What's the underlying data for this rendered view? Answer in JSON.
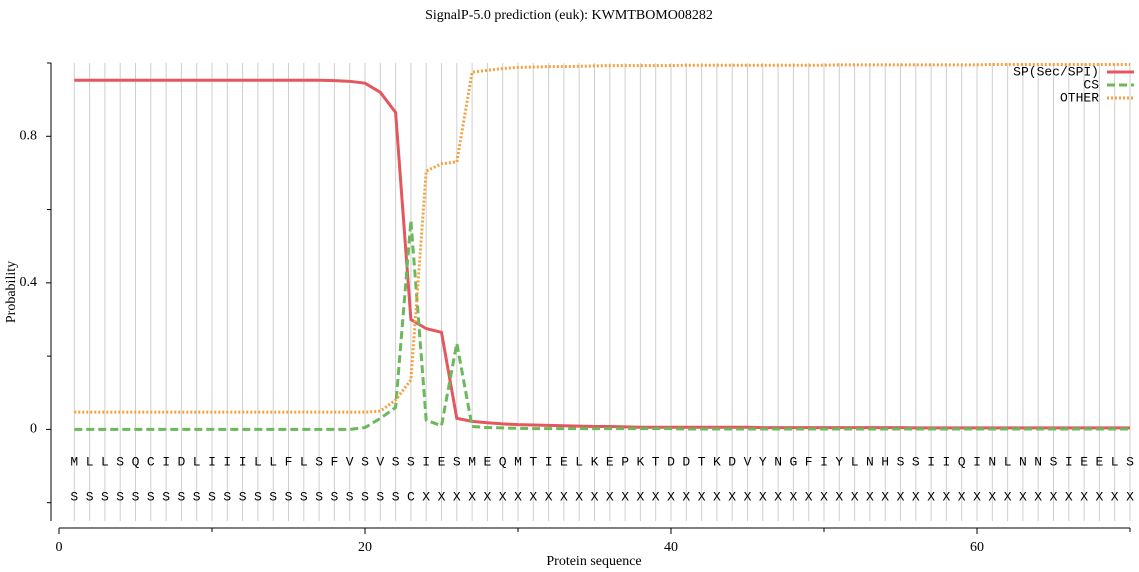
{
  "chart_data": {
    "type": "line",
    "title": "SignalP-5.0 prediction (euk):  KWMTBOMO08282",
    "xlabel": "Protein sequence",
    "ylabel": "Probability",
    "x": [
      1,
      2,
      3,
      4,
      5,
      6,
      7,
      8,
      9,
      10,
      11,
      12,
      13,
      14,
      15,
      16,
      17,
      18,
      19,
      20,
      21,
      22,
      23,
      24,
      25,
      26,
      27,
      28,
      29,
      30,
      31,
      32,
      33,
      34,
      35,
      36,
      37,
      38,
      39,
      40,
      41,
      42,
      43,
      44,
      45,
      46,
      47,
      48,
      49,
      50,
      51,
      52,
      53,
      54,
      55,
      56,
      57,
      58,
      59,
      60,
      61,
      62,
      63,
      64,
      65,
      66,
      67,
      68,
      69,
      70
    ],
    "sequence": [
      "M",
      "L",
      "L",
      "S",
      "Q",
      "C",
      "I",
      "D",
      "L",
      "I",
      "I",
      "I",
      "L",
      "L",
      "F",
      "L",
      "S",
      "F",
      "V",
      "S",
      "V",
      "S",
      "S",
      "I",
      "E",
      "S",
      "M",
      "E",
      "Q",
      "M",
      "T",
      "I",
      "E",
      "L",
      "K",
      "E",
      "P",
      "K",
      "T",
      "D",
      "D",
      "T",
      "K",
      "D",
      "V",
      "Y",
      "N",
      "G",
      "F",
      "I",
      "Y",
      "L",
      "N",
      "H",
      "S",
      "S",
      "I",
      "I",
      "Q",
      "I",
      "N",
      "L",
      "N",
      "N",
      "S",
      "I",
      "E",
      "E",
      "L",
      "S"
    ],
    "labels": [
      "S",
      "S",
      "S",
      "S",
      "S",
      "S",
      "S",
      "S",
      "S",
      "S",
      "S",
      "S",
      "S",
      "S",
      "S",
      "S",
      "S",
      "S",
      "S",
      "S",
      "S",
      "S",
      "C",
      "X",
      "X",
      "X",
      "X",
      "X",
      "X",
      "X",
      "X",
      "X",
      "X",
      "X",
      "X",
      "X",
      "X",
      "X",
      "X",
      "X",
      "X",
      "X",
      "X",
      "X",
      "X",
      "X",
      "X",
      "X",
      "X",
      "X",
      "X",
      "X",
      "X",
      "X",
      "X",
      "X",
      "X",
      "X",
      "X",
      "X",
      "X",
      "X",
      "X",
      "X",
      "X",
      "X",
      "X",
      "X",
      "X",
      "X"
    ],
    "series": [
      {
        "name": "SP(Sec/SPI)",
        "color": "#e4575f",
        "linestyle": "solid",
        "values": [
          0.953,
          0.953,
          0.953,
          0.953,
          0.953,
          0.953,
          0.953,
          0.953,
          0.953,
          0.953,
          0.953,
          0.953,
          0.953,
          0.953,
          0.953,
          0.953,
          0.953,
          0.952,
          0.95,
          0.945,
          0.92,
          0.865,
          0.3,
          0.275,
          0.265,
          0.03,
          0.022,
          0.018,
          0.015,
          0.013,
          0.012,
          0.011,
          0.01,
          0.009,
          0.008,
          0.008,
          0.007,
          0.006,
          0.006,
          0.006,
          0.006,
          0.006,
          0.006,
          0.006,
          0.006,
          0.005,
          0.005,
          0.005,
          0.005,
          0.005,
          0.005,
          0.005,
          0.005,
          0.005,
          0.005,
          0.004,
          0.004,
          0.004,
          0.004,
          0.004,
          0.004,
          0.004,
          0.004,
          0.004,
          0.004,
          0.004,
          0.004,
          0.004,
          0.004,
          0.004
        ]
      },
      {
        "name": "CS",
        "color": "#6ab95a",
        "linestyle": "dashed",
        "values": [
          0,
          0,
          0,
          0,
          0,
          0,
          0,
          0,
          0,
          0,
          0,
          0,
          0,
          0,
          0,
          0,
          0,
          0,
          0,
          0.005,
          0.03,
          0.06,
          0.57,
          0.025,
          0.01,
          0.235,
          0.008,
          0.005,
          0.004,
          0.003,
          0.002,
          0.002,
          0.002,
          0.002,
          0.002,
          0.002,
          0.002,
          0.002,
          0.002,
          0.002,
          0.001,
          0.001,
          0.001,
          0.001,
          0.001,
          0.001,
          0.001,
          0.001,
          0.001,
          0.001,
          0.001,
          0.001,
          0.001,
          0.001,
          0.001,
          0.001,
          0.001,
          0.001,
          0.001,
          0.001,
          0.001,
          0.001,
          0.001,
          0.001,
          0.001,
          0.001,
          0.001,
          0.001,
          0.001,
          0.001
        ]
      },
      {
        "name": "OTHER",
        "color": "#f5a040",
        "linestyle": "dotted",
        "values": [
          0.047,
          0.047,
          0.047,
          0.047,
          0.047,
          0.047,
          0.047,
          0.047,
          0.047,
          0.047,
          0.047,
          0.047,
          0.047,
          0.047,
          0.047,
          0.047,
          0.047,
          0.047,
          0.047,
          0.047,
          0.05,
          0.08,
          0.135,
          0.705,
          0.725,
          0.73,
          0.975,
          0.98,
          0.985,
          0.988,
          0.989,
          0.99,
          0.99,
          0.991,
          0.992,
          0.993,
          0.993,
          0.993,
          0.993,
          0.993,
          0.994,
          0.994,
          0.994,
          0.994,
          0.994,
          0.994,
          0.994,
          0.994,
          0.994,
          0.994,
          0.995,
          0.995,
          0.995,
          0.995,
          0.995,
          0.995,
          0.995,
          0.995,
          0.995,
          0.995,
          0.996,
          0.996,
          0.996,
          0.996,
          0.996,
          0.996,
          0.996,
          0.996,
          0.996,
          0.996
        ]
      }
    ],
    "xlim": [
      0,
      70
    ],
    "xticks": [
      0,
      20,
      40,
      60
    ],
    "xminor": [
      10,
      30,
      50,
      70
    ],
    "ylim": [
      -0.25,
      1.0
    ],
    "yticks": [
      0,
      0.4,
      0.8
    ],
    "yminor": [
      -0.2,
      0.2,
      0.6,
      1.0
    ],
    "grid": true,
    "legend": "upper right"
  }
}
